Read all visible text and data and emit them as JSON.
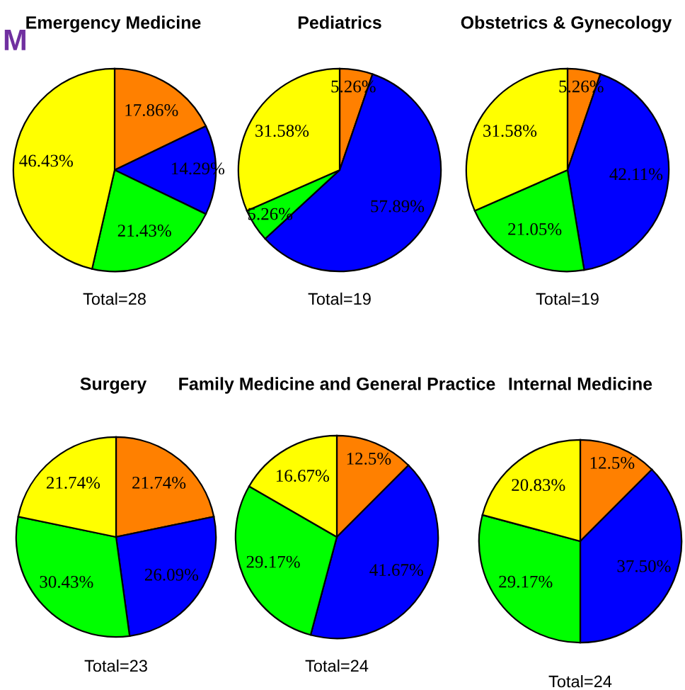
{
  "chart_data": [
    {
      "type": "pie",
      "title": "Emergency Medicine",
      "categories": [
        null,
        null,
        null,
        null
      ],
      "values": [
        17.86,
        14.29,
        21.43,
        46.43
      ],
      "colors": [
        "#ff8000",
        "#0000ff",
        "#00ff00",
        "#ffff00"
      ],
      "value_labels": [
        "17.86%",
        "14.29%",
        "21.43%",
        "46.43%"
      ],
      "annotations": [
        "Total=28",
        "M"
      ]
    },
    {
      "type": "pie",
      "title": "Pediatrics",
      "categories": [
        null,
        null,
        null,
        null
      ],
      "values": [
        5.26,
        57.89,
        5.26,
        31.58
      ],
      "colors": [
        "#ff8000",
        "#0000ff",
        "#00ff00",
        "#ffff00"
      ],
      "value_labels": [
        "5.26%",
        "57.89%",
        "5.26%",
        "31.58%"
      ],
      "annotations": [
        "Total=19"
      ]
    },
    {
      "type": "pie",
      "title": "Obstetrics & Gynecology",
      "categories": [
        null,
        null,
        null,
        null
      ],
      "values": [
        5.26,
        42.11,
        21.05,
        31.58
      ],
      "colors": [
        "#ff8000",
        "#0000ff",
        "#00ff00",
        "#ffff00"
      ],
      "value_labels": [
        "5.26%",
        "42.11%",
        "21.05%",
        "31.58%"
      ],
      "annotations": [
        "Total=19"
      ]
    },
    {
      "type": "pie",
      "title": "Surgery",
      "categories": [
        null,
        null,
        null,
        null
      ],
      "values": [
        21.74,
        26.09,
        30.43,
        21.74
      ],
      "colors": [
        "#ff8000",
        "#0000ff",
        "#00ff00",
        "#ffff00"
      ],
      "value_labels": [
        "21.74%",
        "26.09%",
        "30.43%",
        "21.74%"
      ],
      "annotations": [
        "Total=23"
      ]
    },
    {
      "type": "pie",
      "title": "Family Medicine and General Practice",
      "categories": [
        null,
        null,
        null,
        null
      ],
      "values": [
        12.5,
        41.67,
        29.17,
        16.67
      ],
      "colors": [
        "#ff8000",
        "#0000ff",
        "#00ff00",
        "#ffff00"
      ],
      "value_labels": [
        "12.5%",
        "41.67%",
        "29.17%",
        "16.67%"
      ],
      "annotations": [
        "Total=24"
      ]
    },
    {
      "type": "pie",
      "title": "Internal Medicine",
      "categories": [
        null,
        null,
        null,
        null
      ],
      "values": [
        12.5,
        37.5,
        29.17,
        20.83
      ],
      "colors": [
        "#ff8000",
        "#0000ff",
        "#00ff00",
        "#ffff00"
      ],
      "value_labels": [
        "12.5%",
        "37.50%",
        "29.17%",
        "20.83%"
      ],
      "annotations": [
        "Total=24"
      ]
    }
  ]
}
